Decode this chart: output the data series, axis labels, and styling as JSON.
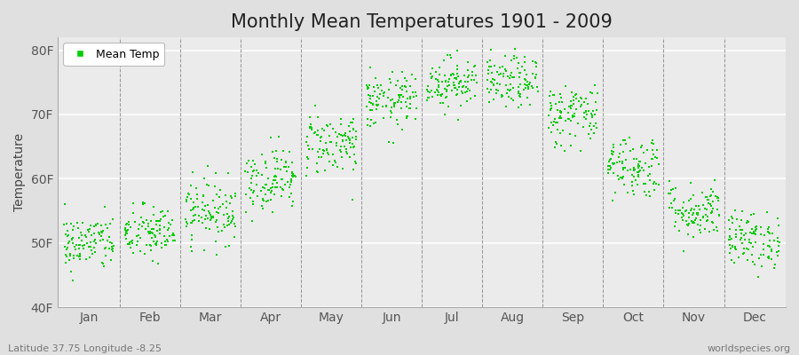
{
  "title": "Monthly Mean Temperatures 1901 - 2009",
  "ylabel": "Temperature",
  "xlabel_labels": [
    "Jan",
    "Feb",
    "Mar",
    "Apr",
    "May",
    "Jun",
    "Jul",
    "Aug",
    "Sep",
    "Oct",
    "Nov",
    "Dec"
  ],
  "ytick_labels": [
    "40F",
    "50F",
    "60F",
    "70F",
    "80F"
  ],
  "ytick_values": [
    40,
    50,
    60,
    70,
    80
  ],
  "ylim": [
    40,
    82
  ],
  "legend_label": "Mean Temp",
  "dot_color": "#00CC00",
  "fig_bg_color": "#e0e0e0",
  "plot_bg_color": "#ebebeb",
  "bottom_left_text": "Latitude 37.75 Longitude -8.25",
  "bottom_right_text": "worldspecies.org",
  "monthly_means": [
    50.0,
    51.5,
    55.0,
    60.0,
    65.5,
    72.0,
    75.0,
    75.0,
    70.0,
    62.0,
    55.0,
    50.5
  ],
  "monthly_stds": [
    2.2,
    2.2,
    2.5,
    2.5,
    2.5,
    2.2,
    2.0,
    2.0,
    2.5,
    2.5,
    2.2,
    2.2
  ],
  "n_years": 109,
  "title_fontsize": 15,
  "axis_label_fontsize": 10,
  "tick_fontsize": 10,
  "marker_size": 3,
  "figsize": [
    9.0,
    4.0
  ],
  "dpi": 100
}
